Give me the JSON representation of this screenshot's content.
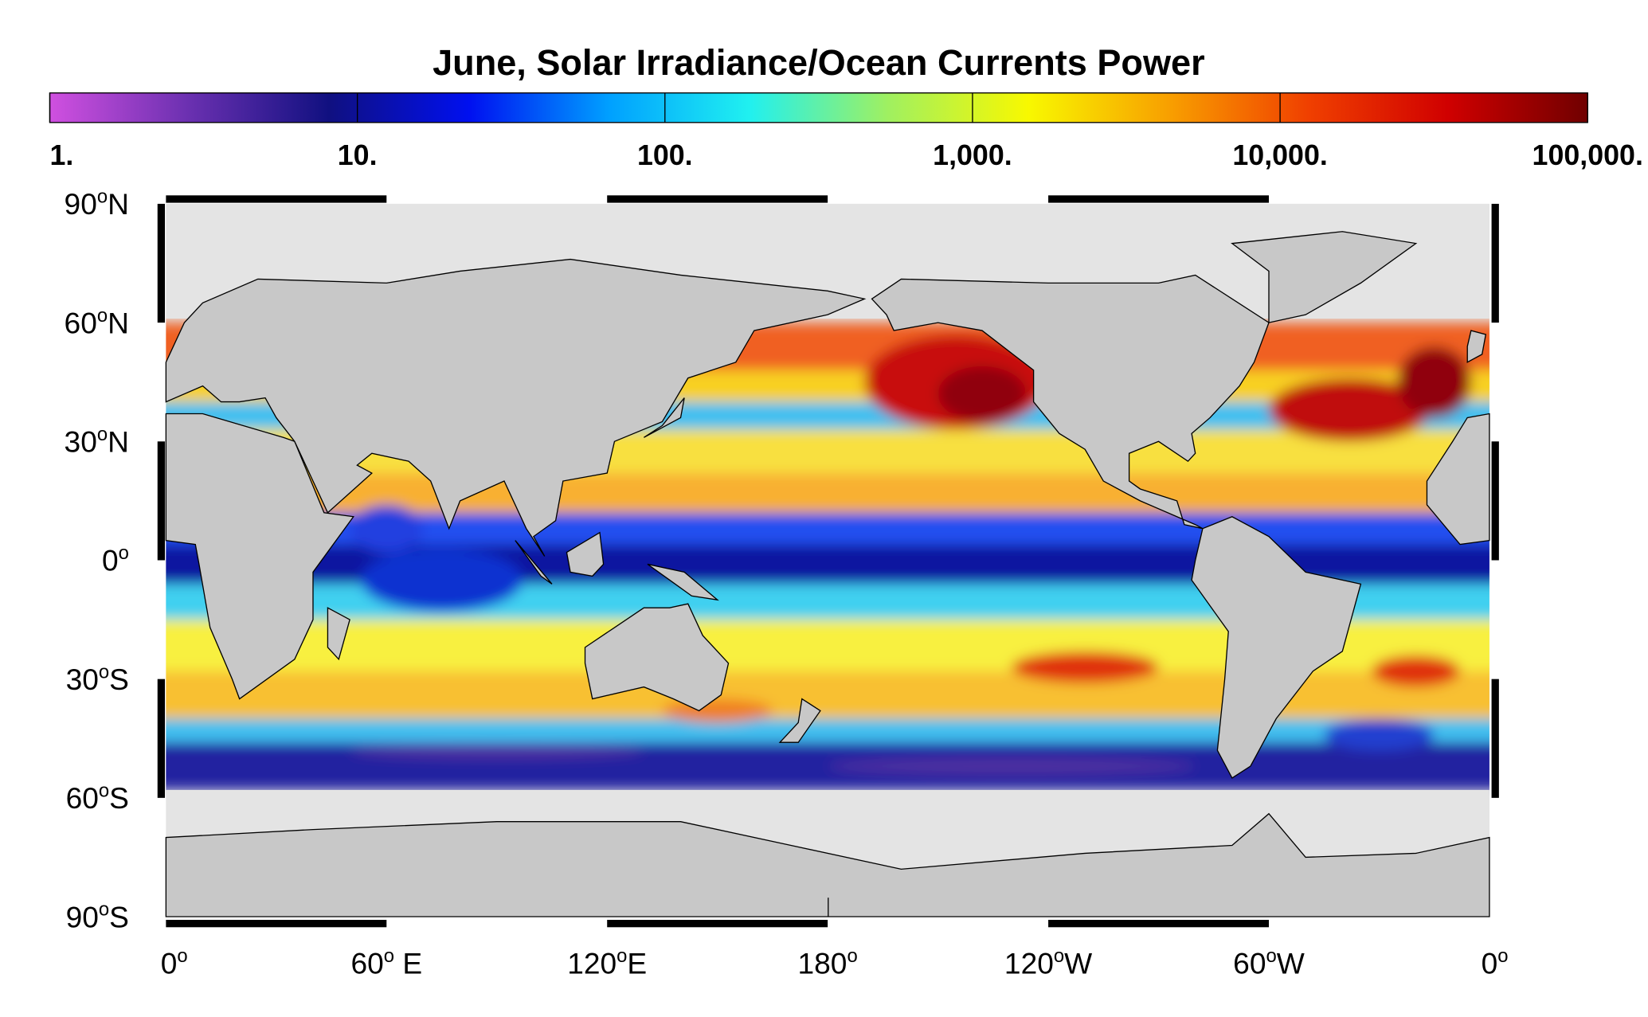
{
  "title": "June, Solar Irradiance/Ocean Currents Power",
  "colorbar": {
    "scale": "log",
    "lim": [
      1,
      100000
    ],
    "colors": [
      "#d050e0",
      "#6a30b0",
      "#101080",
      "#0010f0",
      "#00a0ff",
      "#20f0f0",
      "#a0f060",
      "#f8f800",
      "#f8a000",
      "#f04000",
      "#d00000",
      "#700000"
    ],
    "ticks": [
      {
        "value": 1,
        "label": "1."
      },
      {
        "value": 10,
        "label": "10."
      },
      {
        "value": 100,
        "label": "100."
      },
      {
        "value": 1000,
        "label": "1,000."
      },
      {
        "value": 10000,
        "label": "10,000."
      },
      {
        "value": 100000,
        "label": "100,000."
      }
    ]
  },
  "latitude_labels": [
    {
      "number": "90",
      "degree": "o",
      "hemisphere": "N"
    },
    {
      "number": "60",
      "degree": "o",
      "hemisphere": "N"
    },
    {
      "number": "30",
      "degree": "o",
      "hemisphere": "N"
    },
    {
      "number": "0",
      "degree": "o"
    },
    {
      "number": "30",
      "degree": "o",
      "hemisphere": "S"
    },
    {
      "number": "60",
      "degree": "o",
      "hemisphere": "S"
    },
    {
      "number": "90",
      "degree": "o",
      "hemisphere": "S"
    }
  ],
  "longitude_labels": [
    {
      "number": "0",
      "degree": "o"
    },
    {
      "number": "60",
      "degree": "o",
      "hemisphere": " E"
    },
    {
      "number": "120",
      "degree": "o",
      "hemisphere": "E"
    },
    {
      "number": "180",
      "degree": "o"
    },
    {
      "number": "120",
      "degree": "o",
      "hemisphere": "W"
    },
    {
      "number": "60",
      "degree": "o",
      "hemisphere": "W"
    },
    {
      "number": "0",
      "degree": "o"
    }
  ]
}
